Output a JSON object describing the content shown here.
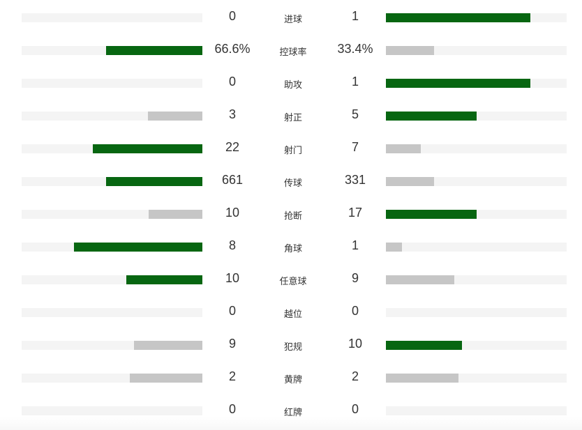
{
  "colors": {
    "leader": "#076611",
    "trailer": "#c6c6c6",
    "track": "#f4f4f4"
  },
  "stats": [
    {
      "label": "进球",
      "home": "0",
      "away": "1",
      "home_value": 0,
      "away_value": 1
    },
    {
      "label": "控球率",
      "home": "66.6%",
      "away": "33.4%",
      "home_value": 66.6,
      "away_value": 33.4
    },
    {
      "label": "助攻",
      "home": "0",
      "away": "1",
      "home_value": 0,
      "away_value": 1
    },
    {
      "label": "射正",
      "home": "3",
      "away": "5",
      "home_value": 3,
      "away_value": 5
    },
    {
      "label": "射门",
      "home": "22",
      "away": "7",
      "home_value": 22,
      "away_value": 7
    },
    {
      "label": "传球",
      "home": "661",
      "away": "331",
      "home_value": 661,
      "away_value": 331
    },
    {
      "label": "抢断",
      "home": "10",
      "away": "17",
      "home_value": 10,
      "away_value": 17
    },
    {
      "label": "角球",
      "home": "8",
      "away": "1",
      "home_value": 8,
      "away_value": 1
    },
    {
      "label": "任意球",
      "home": "10",
      "away": "9",
      "home_value": 10,
      "away_value": 9
    },
    {
      "label": "越位",
      "home": "0",
      "away": "0",
      "home_value": 0,
      "away_value": 0
    },
    {
      "label": "犯规",
      "home": "9",
      "away": "10",
      "home_value": 9,
      "away_value": 10
    },
    {
      "label": "黄牌",
      "home": "2",
      "away": "2",
      "home_value": 2,
      "away_value": 2
    },
    {
      "label": "红牌",
      "home": "0",
      "away": "0",
      "home_value": 0,
      "away_value": 0
    }
  ]
}
